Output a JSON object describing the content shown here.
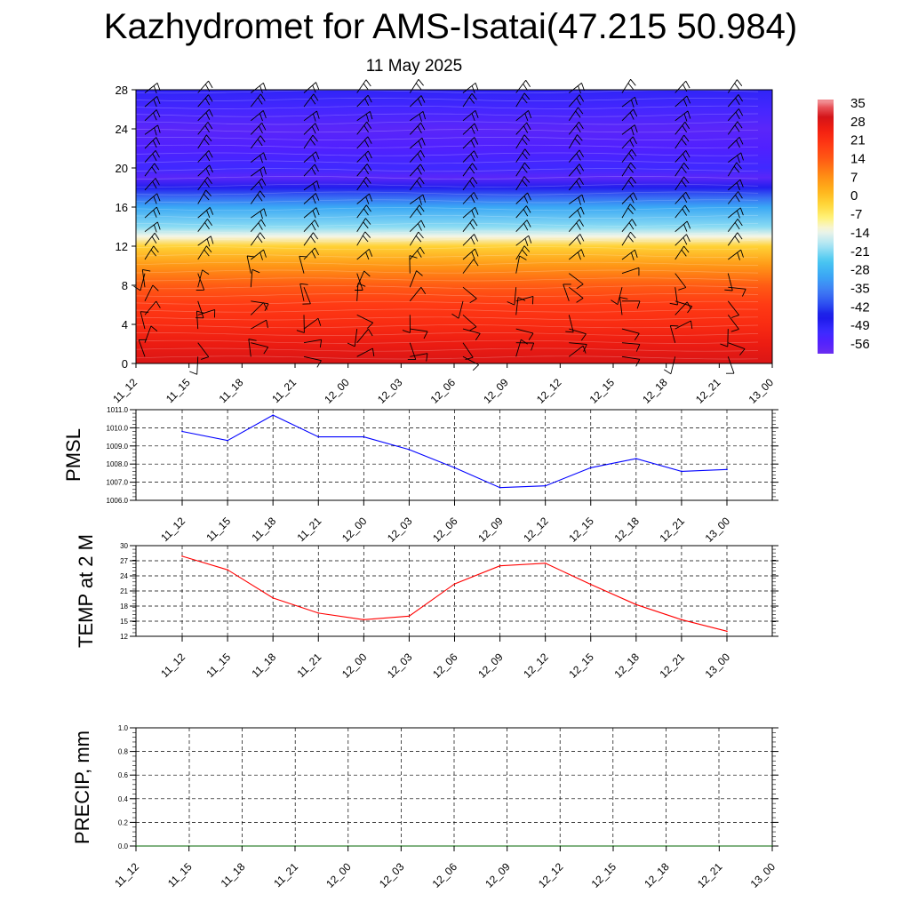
{
  "header": {
    "title": "Kazhydromet for AMS-Isatai(47.215 50.984)",
    "subtitle": "11 May 2025"
  },
  "chart_data": [
    {
      "type": "heatmap",
      "name": "vertical-section",
      "x": [
        "11_12",
        "11_15",
        "11_18",
        "11_21",
        "12_00",
        "12_03",
        "12_06",
        "12_09",
        "12_12",
        "12_15",
        "12_18",
        "12_21",
        "13_00"
      ],
      "y_ticks": [
        0,
        4,
        8,
        12,
        16,
        20,
        24,
        28
      ],
      "ylim": [
        0,
        28
      ],
      "colorbar": {
        "labels": [
          "35",
          "28",
          "21",
          "14",
          "7",
          "0",
          "-7",
          "-14",
          "-21",
          "-28",
          "-35",
          "-42",
          "-49",
          "-56"
        ],
        "range": [
          -63,
          38
        ]
      },
      "temperature_profile": {
        "heights": [
          0,
          2,
          4,
          6,
          8,
          10,
          12,
          13,
          14,
          16,
          17,
          18,
          19,
          20,
          22,
          24,
          26,
          28
        ],
        "values": [
          30,
          27,
          23,
          20,
          14,
          6,
          -3,
          -14,
          -22,
          -32,
          -40,
          -50,
          -60,
          -55,
          -58,
          -60,
          -56,
          -52
        ]
      },
      "overlay": "wind barbs"
    },
    {
      "type": "line",
      "name": "pmsl",
      "ylabel": "PMSL",
      "categories": [
        "11_12",
        "11_15",
        "11_18",
        "11_21",
        "12_00",
        "12_03",
        "12_06",
        "12_09",
        "12_12",
        "12_15",
        "12_18",
        "12_21",
        "13_00"
      ],
      "values": [
        1009.8,
        1009.3,
        1010.7,
        1009.5,
        1009.5,
        1008.8,
        1007.8,
        1006.7,
        1006.8,
        1007.8,
        1008.3,
        1007.6,
        1007.7
      ],
      "ylim": [
        1006.0,
        1011.0
      ],
      "y_ticks": [
        "1006.0",
        "1007.0",
        "1008.0",
        "1009.0",
        "1010.0",
        "1011.0"
      ],
      "color": "#0000ff",
      "grid": true
    },
    {
      "type": "line",
      "name": "temp2m",
      "ylabel": "TEMP at 2 M",
      "categories": [
        "11_12",
        "11_15",
        "11_18",
        "11_21",
        "12_00",
        "12_03",
        "12_06",
        "12_09",
        "12_12",
        "12_15",
        "12_18",
        "12_21",
        "13_00"
      ],
      "values": [
        27.9,
        25.2,
        19.6,
        16.6,
        15.3,
        16.0,
        22.4,
        26.0,
        26.5,
        22.3,
        18.3,
        15.3,
        13.0
      ],
      "ylim": [
        12,
        30
      ],
      "y_ticks": [
        "12",
        "15",
        "18",
        "21",
        "24",
        "27",
        "30"
      ],
      "color": "#ff0000",
      "grid": true
    },
    {
      "type": "line",
      "name": "precip",
      "ylabel": "PRECIP, mm",
      "categories": [
        "11_12",
        "11_15",
        "11_18",
        "11_21",
        "12_00",
        "12_03",
        "12_06",
        "12_09",
        "12_12",
        "12_15",
        "12_18",
        "12_21",
        "13_00"
      ],
      "values": [
        0,
        0,
        0,
        0,
        0,
        0,
        0,
        0,
        0,
        0,
        0,
        0,
        0
      ],
      "ylim": [
        0,
        1
      ],
      "y_ticks": [
        "0.0",
        "0.2",
        "0.4",
        "0.6",
        "0.8",
        "1.0"
      ],
      "color": "#006400",
      "grid": true
    }
  ]
}
